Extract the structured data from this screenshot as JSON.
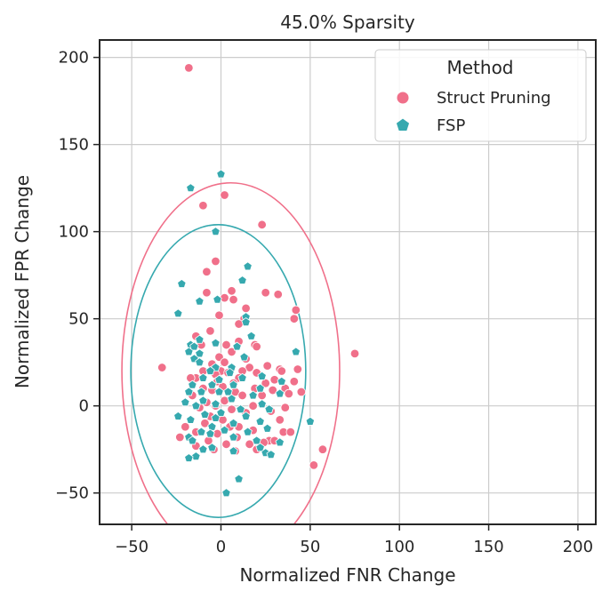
{
  "chart_data": {
    "type": "scatter",
    "title": "45.0% Sparsity",
    "xlabel": "Normalized FNR Change",
    "ylabel": "Normalized FPR Change",
    "xlim": [
      -68,
      210
    ],
    "ylim": [
      -68,
      210
    ],
    "xticks": [
      -50,
      0,
      50,
      100,
      150,
      200
    ],
    "yticks": [
      -50,
      0,
      50,
      100,
      150,
      200
    ],
    "xtick_labels": [
      "−50",
      "0",
      "50",
      "100",
      "150",
      "200"
    ],
    "ytick_labels": [
      "−50",
      "0",
      "50",
      "100",
      "150",
      "200"
    ],
    "grid": true,
    "legend": {
      "title": "Method",
      "position": "top-right"
    },
    "series": [
      {
        "name": "Struct Pruning",
        "color": "#f0708a",
        "marker": "circle",
        "ellipse": {
          "cx": 5.5,
          "cy": 20,
          "rx": 61,
          "ry": 108
        },
        "points": [
          [
            -18,
            194
          ],
          [
            2,
            121
          ],
          [
            -10,
            115
          ],
          [
            23,
            104
          ],
          [
            -3,
            83
          ],
          [
            -8,
            77
          ],
          [
            6,
            66
          ],
          [
            25,
            65
          ],
          [
            -8,
            65
          ],
          [
            2,
            62
          ],
          [
            7,
            61
          ],
          [
            32,
            64
          ],
          [
            42,
            55
          ],
          [
            14,
            56
          ],
          [
            -1,
            52
          ],
          [
            13,
            50
          ],
          [
            41,
            50
          ],
          [
            10,
            47
          ],
          [
            -6,
            43
          ],
          [
            -14,
            40
          ],
          [
            19,
            35
          ],
          [
            10,
            37
          ],
          [
            3,
            35
          ],
          [
            20,
            34
          ],
          [
            -11,
            35
          ],
          [
            6,
            31
          ],
          [
            75,
            30
          ],
          [
            -1,
            28
          ],
          [
            14,
            27
          ],
          [
            2,
            25
          ],
          [
            -33,
            22
          ],
          [
            -5,
            24
          ],
          [
            16,
            22
          ],
          [
            26,
            23
          ],
          [
            33,
            21
          ],
          [
            43,
            21
          ],
          [
            -10,
            20
          ],
          [
            0,
            20
          ],
          [
            12,
            20
          ],
          [
            34,
            20
          ],
          [
            4,
            19
          ],
          [
            20,
            19
          ],
          [
            -3,
            18
          ],
          [
            -14,
            16
          ],
          [
            10,
            16
          ],
          [
            30,
            15
          ],
          [
            -2,
            14
          ],
          [
            -17,
            16
          ],
          [
            41,
            14
          ],
          [
            7,
            13
          ],
          [
            25,
            13
          ],
          [
            1,
            11
          ],
          [
            -10,
            10
          ],
          [
            19,
            10
          ],
          [
            36,
            10
          ],
          [
            -5,
            9
          ],
          [
            8,
            8
          ],
          [
            29,
            9
          ],
          [
            45,
            8
          ],
          [
            38,
            7
          ],
          [
            -16,
            6
          ],
          [
            12,
            6
          ],
          [
            23,
            6
          ],
          [
            2,
            3
          ],
          [
            -8,
            2
          ],
          [
            18,
            0
          ],
          [
            36,
            -1
          ],
          [
            -3,
            0
          ],
          [
            -12,
            -1
          ],
          [
            6,
            -2
          ],
          [
            28,
            -3
          ],
          [
            14,
            -4
          ],
          [
            -6,
            -6
          ],
          [
            33,
            -8
          ],
          [
            1,
            -8
          ],
          [
            22,
            -9
          ],
          [
            -9,
            -10
          ],
          [
            5,
            -12
          ],
          [
            -20,
            -12
          ],
          [
            10,
            -12
          ],
          [
            -14,
            -15
          ],
          [
            18,
            -14
          ],
          [
            35,
            -15
          ],
          [
            39,
            -15
          ],
          [
            -2,
            -16
          ],
          [
            9,
            -18
          ],
          [
            -23,
            -18
          ],
          [
            27,
            -20
          ],
          [
            30,
            -20
          ],
          [
            -7,
            -20
          ],
          [
            24,
            -21
          ],
          [
            3,
            -22
          ],
          [
            16,
            -22
          ],
          [
            -14,
            -23
          ],
          [
            57,
            -25
          ],
          [
            20,
            -25
          ],
          [
            8,
            -26
          ],
          [
            -4,
            -25
          ],
          [
            52,
            -34
          ]
        ]
      },
      {
        "name": "FSP",
        "color": "#36a9af",
        "marker": "pentagon",
        "ellipse": {
          "cx": -1.5,
          "cy": 20,
          "rx": 49,
          "ry": 84
        },
        "points": [
          [
            0,
            133
          ],
          [
            -17,
            125
          ],
          [
            -3,
            100
          ],
          [
            15,
            80
          ],
          [
            -22,
            70
          ],
          [
            12,
            72
          ],
          [
            -12,
            60
          ],
          [
            -2,
            61
          ],
          [
            -24,
            53
          ],
          [
            14,
            51
          ],
          [
            14,
            48
          ],
          [
            17,
            40
          ],
          [
            -12,
            38
          ],
          [
            -3,
            36
          ],
          [
            -17,
            35
          ],
          [
            -15,
            34
          ],
          [
            9,
            34
          ],
          [
            -18,
            31
          ],
          [
            -12,
            30
          ],
          [
            42,
            31
          ],
          [
            13,
            28
          ],
          [
            -15,
            27
          ],
          [
            -12,
            25
          ],
          [
            -3,
            22
          ],
          [
            6,
            22
          ],
          [
            -6,
            20
          ],
          [
            5,
            19
          ],
          [
            -10,
            16
          ],
          [
            12,
            16
          ],
          [
            23,
            17
          ],
          [
            -1,
            15
          ],
          [
            34,
            14
          ],
          [
            -16,
            12
          ],
          [
            -5,
            12
          ],
          [
            7,
            12
          ],
          [
            22,
            10
          ],
          [
            -11,
            8
          ],
          [
            4,
            8
          ],
          [
            -1,
            8
          ],
          [
            33,
            7
          ],
          [
            -18,
            8
          ],
          [
            18,
            6
          ],
          [
            6,
            4
          ],
          [
            -10,
            3
          ],
          [
            -3,
            1
          ],
          [
            23,
            1
          ],
          [
            -20,
            2
          ],
          [
            -14,
            0
          ],
          [
            11,
            -2
          ],
          [
            27,
            -2
          ],
          [
            0,
            -4
          ],
          [
            -9,
            -5
          ],
          [
            -24,
            -6
          ],
          [
            14,
            -6
          ],
          [
            -3,
            -7
          ],
          [
            50,
            -9
          ],
          [
            22,
            -9
          ],
          [
            -17,
            -8
          ],
          [
            7,
            -10
          ],
          [
            -5,
            -12
          ],
          [
            26,
            -13
          ],
          [
            2,
            -14
          ],
          [
            -11,
            -15
          ],
          [
            15,
            -15
          ],
          [
            -6,
            -16
          ],
          [
            -18,
            -18
          ],
          [
            7,
            -18
          ],
          [
            -16,
            -20
          ],
          [
            20,
            -20
          ],
          [
            33,
            -21
          ],
          [
            -5,
            -24
          ],
          [
            22,
            -24
          ],
          [
            -10,
            -25
          ],
          [
            25,
            -27
          ],
          [
            7,
            -26
          ],
          [
            28,
            -28
          ],
          [
            -14,
            -29
          ],
          [
            -18,
            -30
          ],
          [
            10,
            -42
          ],
          [
            3,
            -50
          ]
        ]
      }
    ]
  }
}
